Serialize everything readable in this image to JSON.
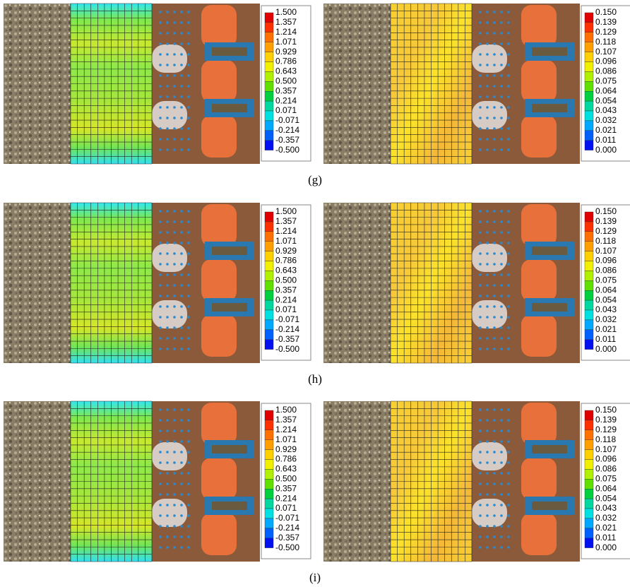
{
  "scales": {
    "left": [
      "1.500",
      "1.357",
      "1.214",
      "1.071",
      "0.929",
      "0.786",
      "0.643",
      "0.500",
      "0.357",
      "0.214",
      "0.071",
      "-0.071",
      "-0.214",
      "-0.357",
      "-0.500"
    ],
    "right": [
      "0.150",
      "0.139",
      "0.129",
      "0.118",
      "0.107",
      "0.096",
      "0.086",
      "0.075",
      "0.064",
      "0.054",
      "0.043",
      "0.032",
      "0.021",
      "0.011",
      "0.000"
    ]
  },
  "panels": [
    {
      "label": "(g)"
    },
    {
      "label": "(h)"
    },
    {
      "label": "(i)"
    }
  ]
}
